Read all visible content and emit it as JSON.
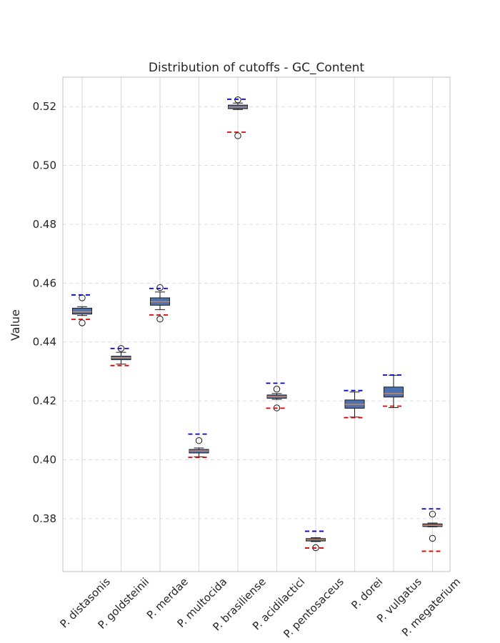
{
  "chart_data": {
    "type": "box",
    "title": "Distribution of cutoffs - GC_Content",
    "xlabel": "",
    "ylabel": "Value",
    "ylim": [
      0.362,
      0.53
    ],
    "yticks": [
      0.38,
      0.4,
      0.42,
      0.44,
      0.46,
      0.48,
      0.5,
      0.52
    ],
    "ytick_labels": [
      "0.38",
      "0.40",
      "0.42",
      "0.44",
      "0.46",
      "0.48",
      "0.50",
      "0.52"
    ],
    "grid": true,
    "categories": [
      "P. distasonis",
      "P. goldsteinii",
      "P. merdae",
      "P. multocida",
      "P. brasiliense",
      "P. acidilactici",
      "P. pentosaceus",
      "P. dorei",
      "P. vulgatus",
      "P. megaterium"
    ],
    "boxes": [
      {
        "whisker_low": 0.449,
        "q1": 0.4495,
        "median": 0.4503,
        "q3": 0.4515,
        "whisker_high": 0.452,
        "outliers": [
          0.455,
          0.4465
        ],
        "upper_line": 0.456,
        "lower_line": 0.4477
      },
      {
        "whisker_low": 0.4325,
        "q1": 0.434,
        "median": 0.4347,
        "q3": 0.4352,
        "whisker_high": 0.4365,
        "outliers": [
          0.4378
        ],
        "upper_line": 0.4378,
        "lower_line": 0.432
      },
      {
        "whisker_low": 0.451,
        "q1": 0.4525,
        "median": 0.4537,
        "q3": 0.455,
        "whisker_high": 0.457,
        "outliers": [
          0.4585,
          0.4478
        ],
        "upper_line": 0.4582,
        "lower_line": 0.4492
      },
      {
        "whisker_low": 0.401,
        "q1": 0.4023,
        "median": 0.403,
        "q3": 0.4035,
        "whisker_high": 0.404,
        "outliers": [
          0.4065
        ],
        "upper_line": 0.4087,
        "lower_line": 0.4008
      },
      {
        "whisker_low": 0.519,
        "q1": 0.5193,
        "median": 0.5198,
        "q3": 0.5205,
        "whisker_high": 0.5212,
        "outliers": [
          0.5223,
          0.5101
        ],
        "upper_line": 0.5225,
        "lower_line": 0.5113
      },
      {
        "whisker_low": 0.4205,
        "q1": 0.4209,
        "median": 0.4214,
        "q3": 0.422,
        "whisker_high": 0.4225,
        "outliers": [
          0.424,
          0.4176
        ],
        "upper_line": 0.426,
        "lower_line": 0.4175
      },
      {
        "whisker_low": 0.3722,
        "q1": 0.3724,
        "median": 0.3728,
        "q3": 0.3732,
        "whisker_high": 0.3735,
        "outliers": [
          0.3701
        ],
        "upper_line": 0.3757,
        "lower_line": 0.37
      },
      {
        "whisker_low": 0.4145,
        "q1": 0.4175,
        "median": 0.4188,
        "q3": 0.4203,
        "whisker_high": 0.423,
        "outliers": [],
        "upper_line": 0.4235,
        "lower_line": 0.4143
      },
      {
        "whisker_low": 0.4177,
        "q1": 0.4213,
        "median": 0.4225,
        "q3": 0.4247,
        "whisker_high": 0.4287,
        "outliers": [],
        "upper_line": 0.4288,
        "lower_line": 0.4182
      },
      {
        "whisker_low": 0.3772,
        "q1": 0.3773,
        "median": 0.3777,
        "q3": 0.3782,
        "whisker_high": 0.3785,
        "outliers": [
          0.3815,
          0.3733
        ],
        "upper_line": 0.3833,
        "lower_line": 0.3689
      }
    ],
    "colors": {
      "box_fill": "#4c72b0",
      "box_edge": "#1a1a1a",
      "median": "#dd8452",
      "upper_line": "#0000cc",
      "lower_line": "#dd0000",
      "grid": "#dcdcdc",
      "frame": "#cccccc"
    }
  }
}
